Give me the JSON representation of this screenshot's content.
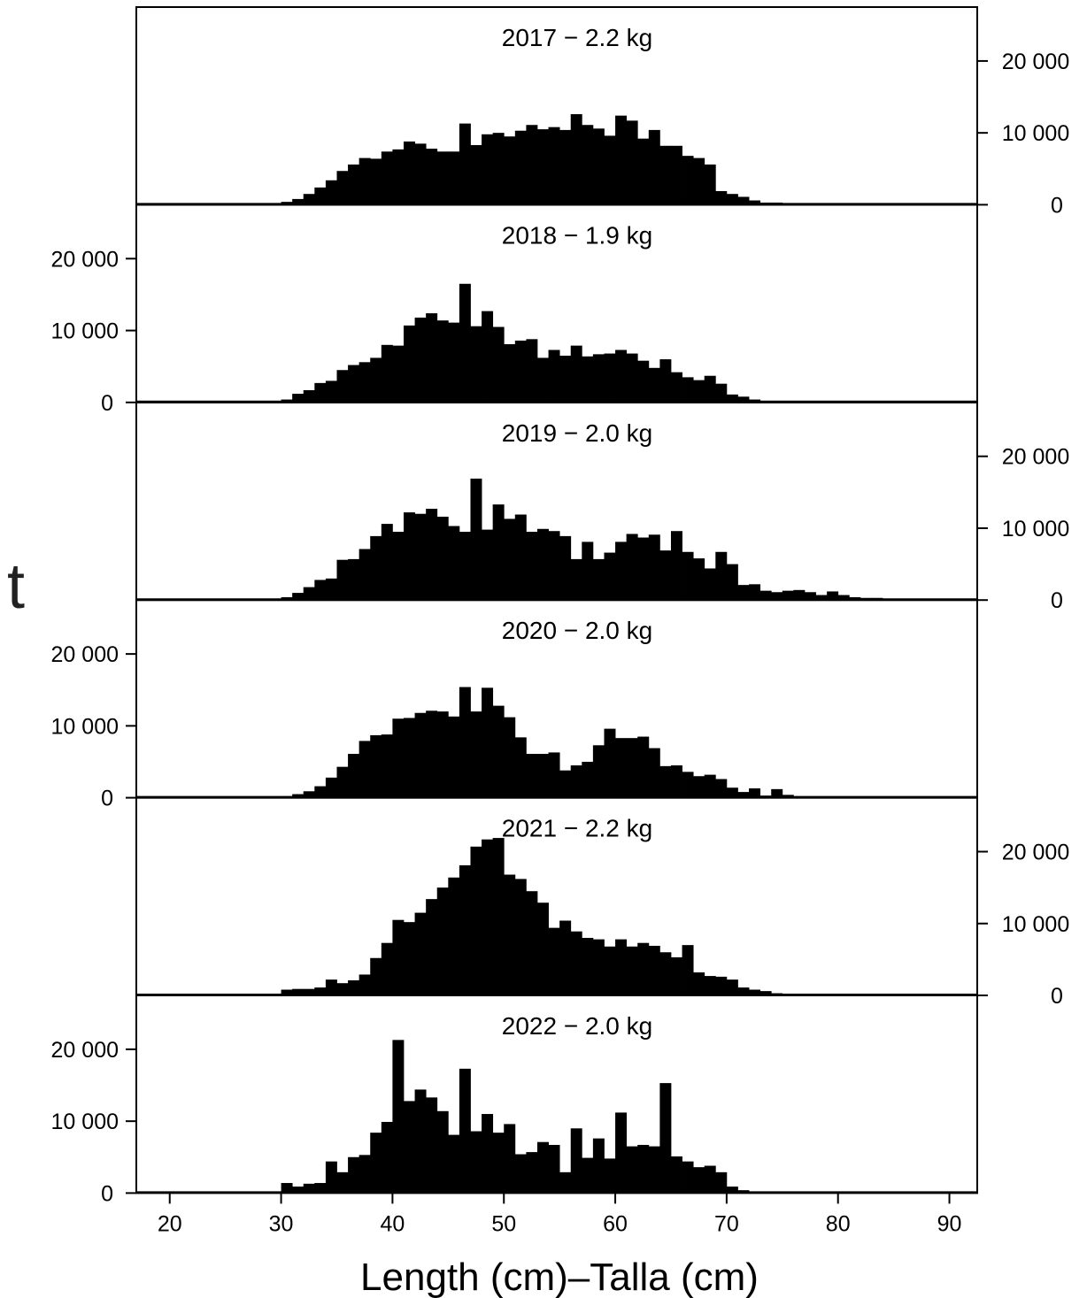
{
  "chart_data": {
    "type": "bar",
    "xlabel": "Length (cm)–Talla (cm)",
    "ylabel": "t",
    "xlim": [
      17,
      92.5
    ],
    "ylim": [
      0,
      27500
    ],
    "x_ticks": [
      20,
      30,
      40,
      50,
      60,
      70,
      80,
      90
    ],
    "y_ticks": [
      0,
      10000,
      20000
    ],
    "y_tick_labels": [
      "0",
      "10 000",
      "20 000"
    ],
    "bin_start": 19,
    "bin_width": 1,
    "panels": [
      {
        "title": "2017 − 2.2 kg",
        "y_axis": "right",
        "values": [
          0,
          0,
          0,
          0,
          0,
          0,
          0,
          0,
          0,
          0,
          200,
          400,
          800,
          1500,
          2400,
          3400,
          4700,
          5600,
          6500,
          6400,
          7400,
          7700,
          8800,
          8500,
          7800,
          7400,
          7400,
          11300,
          8300,
          9800,
          10000,
          9500,
          10300,
          11100,
          10500,
          10800,
          10400,
          12600,
          11100,
          10600,
          9600,
          12400,
          11700,
          9200,
          10400,
          8200,
          8200,
          6800,
          6500,
          5600,
          1900,
          1500,
          1100,
          600,
          300,
          300,
          200,
          200,
          200,
          100,
          200,
          100,
          100,
          100,
          100,
          100,
          100,
          200,
          100,
          100,
          100,
          0
        ]
      },
      {
        "title": "2018 − 1.9 kg",
        "y_axis": "left",
        "values": [
          0,
          0,
          0,
          0,
          0,
          0,
          0,
          0,
          0,
          0,
          200,
          400,
          1200,
          1700,
          2700,
          3000,
          4500,
          5200,
          5600,
          6200,
          8000,
          7900,
          10700,
          11800,
          12400,
          11400,
          11100,
          16500,
          10600,
          12700,
          10500,
          8100,
          8600,
          8800,
          6200,
          7300,
          6500,
          7900,
          6400,
          6700,
          6800,
          7300,
          6800,
          5800,
          4800,
          6000,
          4200,
          3500,
          3100,
          3700,
          2600,
          1100,
          800,
          400,
          200,
          100,
          100,
          200,
          100,
          100,
          100,
          0,
          100,
          100,
          100,
          100,
          200,
          0,
          0,
          0,
          0,
          0
        ]
      },
      {
        "title": "2019 − 2.0 kg",
        "y_axis": "right",
        "values": [
          0,
          0,
          0,
          0,
          0,
          0,
          0,
          0,
          0,
          0,
          200,
          400,
          1000,
          1800,
          2800,
          3000,
          5600,
          5700,
          7100,
          8900,
          10600,
          9500,
          12200,
          12000,
          12700,
          11600,
          10300,
          9500,
          16900,
          9800,
          13300,
          11300,
          11900,
          9500,
          9900,
          9600,
          8900,
          5700,
          8100,
          5700,
          6600,
          8100,
          9200,
          8700,
          9100,
          6900,
          9600,
          6700,
          5800,
          4400,
          6700,
          5000,
          2100,
          2200,
          1300,
          1100,
          1300,
          1400,
          1100,
          700,
          1200,
          700,
          400,
          300,
          300,
          200,
          200,
          200,
          200,
          200,
          0,
          0
        ]
      },
      {
        "title": "2020 − 2.0 kg",
        "y_axis": "left",
        "values": [
          0,
          0,
          0,
          0,
          0,
          0,
          0,
          0,
          0,
          0,
          0,
          200,
          500,
          900,
          1600,
          2800,
          4300,
          6100,
          7900,
          8700,
          8800,
          11000,
          11100,
          11800,
          12100,
          12000,
          11300,
          15400,
          12000,
          15300,
          12800,
          11200,
          8400,
          6100,
          6100,
          6300,
          3800,
          4500,
          5000,
          7300,
          9600,
          8300,
          8300,
          8500,
          6900,
          4400,
          4500,
          3600,
          3000,
          3200,
          2600,
          1400,
          800,
          1300,
          300,
          1200,
          400,
          100,
          0,
          0,
          100,
          0,
          0,
          100,
          0,
          0,
          0,
          0,
          0,
          0,
          0,
          0
        ]
      },
      {
        "title": "2021 − 2.2 kg",
        "y_axis": "right",
        "values": [
          0,
          0,
          0,
          0,
          0,
          0,
          0,
          0,
          0,
          0,
          200,
          800,
          900,
          900,
          1100,
          2200,
          1700,
          2100,
          2900,
          5200,
          7300,
          10500,
          10200,
          11500,
          13400,
          15000,
          16400,
          18100,
          20700,
          21700,
          21900,
          16800,
          16200,
          14500,
          12900,
          9400,
          10400,
          8900,
          8000,
          7800,
          6800,
          7800,
          6800,
          7300,
          6900,
          6000,
          5300,
          7000,
          3200,
          2700,
          2600,
          2200,
          1100,
          800,
          600,
          300,
          200,
          200,
          100,
          100,
          100,
          100,
          100,
          100,
          100,
          100,
          100,
          100,
          100,
          100,
          100,
          100
        ]
      },
      {
        "title": "2022 − 2.0 kg",
        "y_axis": "left",
        "values": [
          0,
          0,
          0,
          0,
          0,
          0,
          0,
          0,
          0,
          0,
          0,
          1400,
          900,
          1300,
          1400,
          4400,
          2900,
          5000,
          5300,
          8400,
          9900,
          21300,
          12800,
          14400,
          13300,
          11400,
          8100,
          17300,
          8600,
          11000,
          8400,
          9600,
          5400,
          5700,
          7100,
          6700,
          2900,
          9000,
          4900,
          7600,
          4800,
          11200,
          6500,
          6700,
          6500,
          15300,
          5100,
          4400,
          3600,
          3800,
          2900,
          900,
          400,
          200,
          200,
          100,
          100,
          100,
          100,
          100,
          100,
          100,
          100,
          100,
          100,
          100,
          100,
          100,
          100,
          0,
          0,
          0
        ]
      }
    ]
  }
}
